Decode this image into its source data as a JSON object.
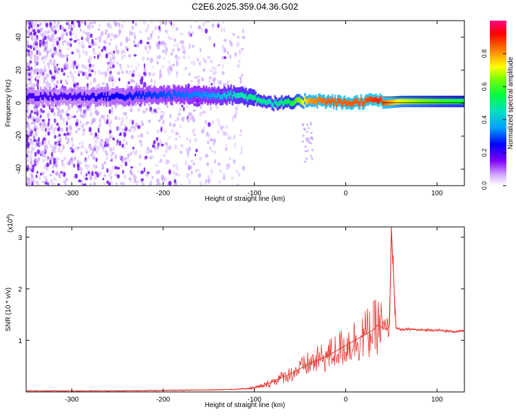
{
  "title": "C2E6.2025.359.04.36.G02",
  "chart_data": [
    {
      "type": "heatmap",
      "xlabel": "Height of straight line (km)",
      "ylabel": "Frequency (Hz)",
      "xlim": [
        -350,
        130
      ],
      "ylim": [
        -50,
        50
      ],
      "x_ticks": [
        -300,
        -200,
        -100,
        0,
        100
      ],
      "y_ticks": [
        -40,
        -20,
        0,
        20,
        40
      ],
      "colorbar": {
        "label": "Normalized spectral amplitude",
        "ticks": [
          0.0,
          0.2,
          0.4,
          0.6,
          0.8
        ],
        "tick_labels": [
          "0.0",
          "0.2",
          "0.4",
          "0.6",
          "0.8"
        ],
        "range": [
          0,
          1
        ],
        "colormap": [
          "#ffffff",
          "#8000ff",
          "#0000ff",
          "#00c0ff",
          "#00ff80",
          "#80ff00",
          "#ffff00",
          "#ff8000",
          "#ff0000",
          "#ff0080"
        ]
      },
      "ridge": {
        "x": [
          -350,
          -300,
          -250,
          -200,
          -150,
          -120,
          -100,
          -80,
          -60,
          -40,
          -20,
          0,
          20,
          35,
          40,
          60,
          80,
          100,
          130
        ],
        "freq": [
          4,
          4,
          4,
          5,
          5,
          5,
          3,
          0,
          0,
          2,
          1,
          0,
          1,
          2,
          0,
          1,
          1,
          1,
          1
        ],
        "amplitude": [
          0.2,
          0.2,
          0.25,
          0.3,
          0.35,
          0.45,
          0.5,
          0.45,
          0.55,
          0.8,
          0.85,
          0.85,
          0.85,
          0.9,
          0.85,
          0.7,
          0.65,
          0.6,
          0.55
        ]
      },
      "grid": false
    },
    {
      "type": "line",
      "xlabel": "Height of straight line (km)",
      "ylabel": "SNR (10 * v/v)",
      "y_exponent_label": "(x10",
      "y_exponent": "4",
      "xlim": [
        -350,
        130
      ],
      "ylim": [
        0,
        3.2
      ],
      "x_ticks": [
        -300,
        -200,
        -100,
        0,
        100
      ],
      "y_ticks": [
        1,
        2,
        3
      ],
      "series": [
        {
          "color": "#e8302a",
          "x": [
            -350,
            -300,
            -250,
            -200,
            -150,
            -120,
            -100,
            -90,
            -80,
            -70,
            -60,
            -50,
            -40,
            -30,
            -20,
            -10,
            0,
            10,
            20,
            30,
            35,
            40,
            45,
            48,
            50,
            55,
            60,
            70,
            80,
            90,
            100,
            110,
            120,
            130
          ],
          "y": [
            0.02,
            0.02,
            0.02,
            0.03,
            0.04,
            0.05,
            0.08,
            0.12,
            0.2,
            0.28,
            0.35,
            0.45,
            0.55,
            0.62,
            0.7,
            0.8,
            0.9,
            1.0,
            1.1,
            1.2,
            1.3,
            1.25,
            1.2,
            1.3,
            3.2,
            1.25,
            1.2,
            1.22,
            1.2,
            1.2,
            1.2,
            1.18,
            1.17,
            1.18
          ]
        }
      ],
      "grid": false
    }
  ]
}
